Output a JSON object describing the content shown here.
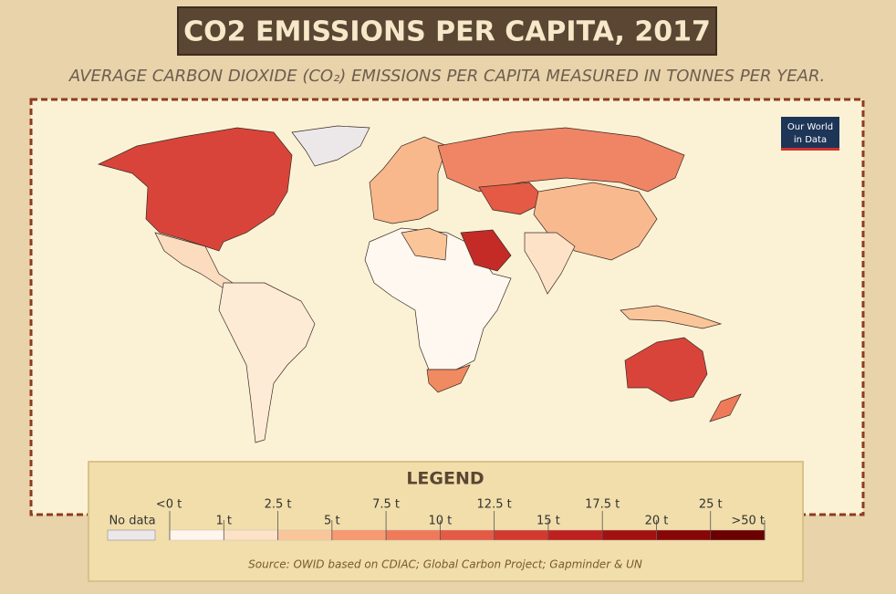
{
  "header": {
    "title": "CO2 EMISSIONS PER CAPITA, 2017",
    "subtitle": "AVERAGE CARBON DIOXIDE (CO₂) EMISSIONS PER CAPITA MEASURED IN TONNES PER YEAR."
  },
  "logo": {
    "line1": "Our World",
    "line2": "in Data"
  },
  "legend": {
    "title": "LEGEND",
    "no_data": "No data",
    "no_data_color": "#ece8ea",
    "ticks": [
      "<0 t",
      "1 t",
      "2.5 t",
      "5 t",
      "7.5 t",
      "10 t",
      "12.5 t",
      "15 t",
      "17.5 t",
      "20 t",
      "25 t",
      ">50 t"
    ],
    "colors": [
      "#fff5ec",
      "#fde2c8",
      "#fbc59a",
      "#f79a71",
      "#ef7a5a",
      "#e45a45",
      "#d23a2e",
      "#be2020",
      "#a31010",
      "#870606",
      "#6a0000"
    ],
    "source": "Source: OWID based on CDIAC; Global Carbon Project; Gapminder & UN"
  }
}
